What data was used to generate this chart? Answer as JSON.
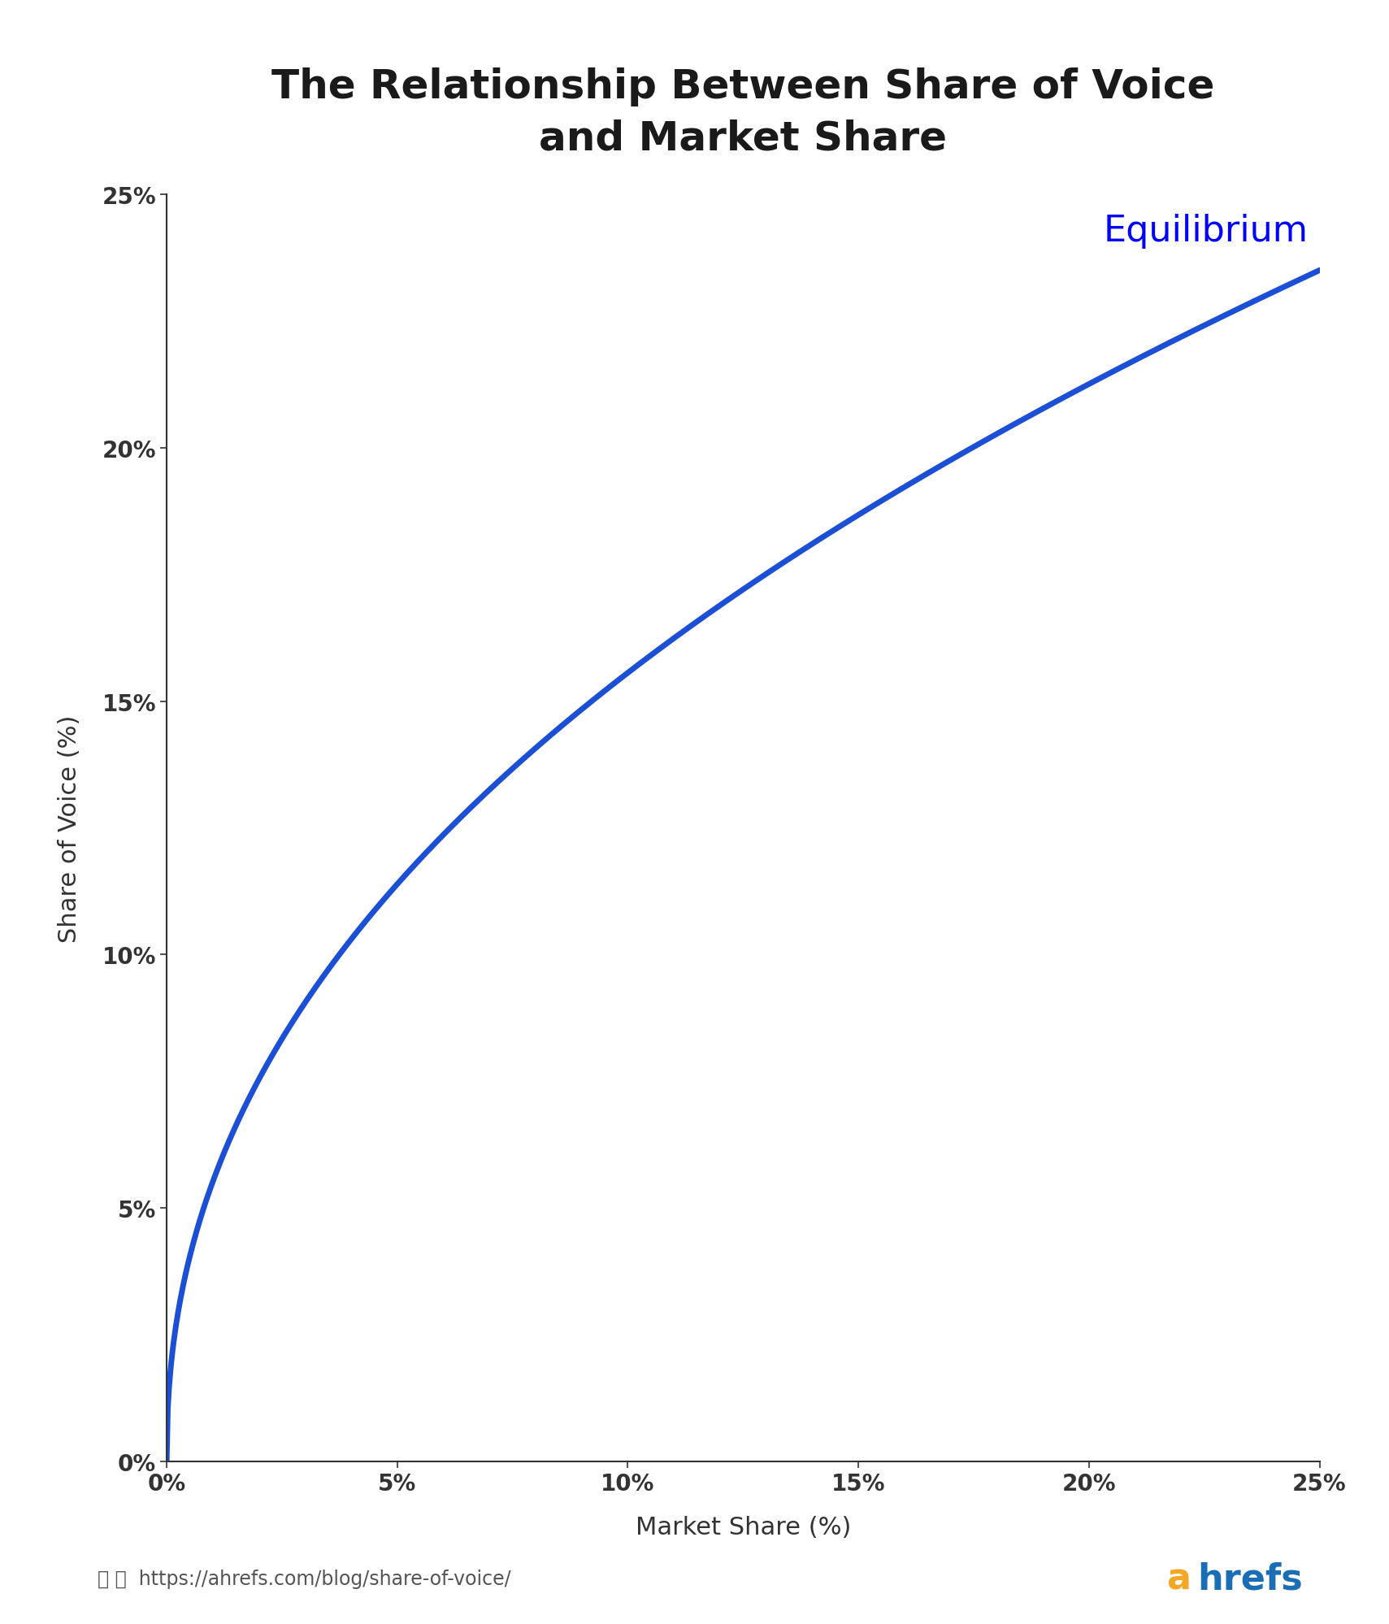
{
  "title": "The Relationship Between Share of Voice\nand Market Share",
  "xlabel": "Market Share (%)",
  "ylabel": "Share of Voice (%)",
  "equilibrium_label": "Equilibrium",
  "equilibrium_color": "#0000ff",
  "line_color": "#1a4fd6",
  "line_width": 5.0,
  "x_min": 0,
  "x_max": 25,
  "y_min": 0,
  "y_max": 25,
  "x_ticks": [
    0,
    5,
    10,
    15,
    20,
    25
  ],
  "y_ticks": [
    0,
    5,
    10,
    15,
    20,
    25
  ],
  "background_color": "#ffffff",
  "title_fontsize": 36,
  "axis_label_fontsize": 22,
  "tick_fontsize": 20,
  "equilibrium_fontsize": 32,
  "footer_url": "https://ahrefs.com/blog/share-of-voice/",
  "footer_color": "#555555",
  "footer_fontsize": 17,
  "ahrefs_a_color": "#f5a623",
  "ahrefs_rest_color": "#1a6eb5",
  "ahrefs_fontsize": 32,
  "spine_color": "#333333",
  "tick_color": "#333333",
  "curve_power": 0.45
}
